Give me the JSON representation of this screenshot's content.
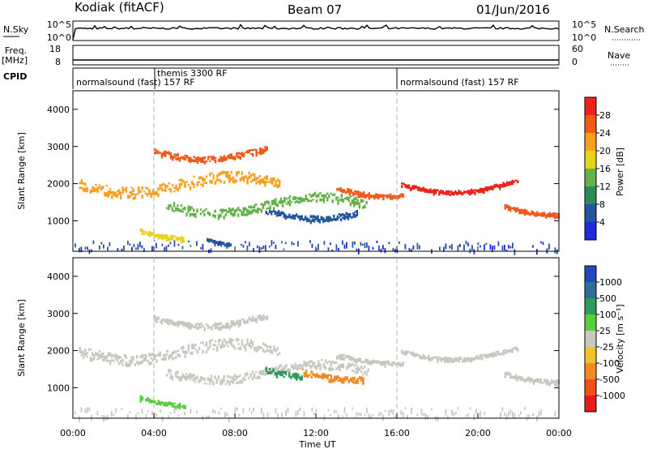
{
  "header": {
    "station": "Kodiak (fitACF)",
    "beam": "Beam 07",
    "date": "01/Jun/2016"
  },
  "panels": {
    "nsky_label": "N.Sky",
    "nsky_ticks": [
      "10^5",
      "10^0"
    ],
    "nsearch_label": "N.Search",
    "nsearch_ticks": [
      "10^5",
      "10^0"
    ],
    "freq_label": "Freq.",
    "freq_unit": "[MHz]",
    "freq_ticks": [
      "18",
      "8"
    ],
    "nave_label": "Nave",
    "nave_ticks": [
      "60",
      "0"
    ],
    "cpid_label": "CPID",
    "cpid_segments": [
      {
        "label": "normalsound (fast) 157 RF",
        "start_h": 0,
        "end_h": 16
      },
      {
        "label": "themis 3300 RF",
        "start_h": 4,
        "end_h": 16
      },
      {
        "label": "normalsound (fast) 157 RF",
        "start_h": 16,
        "end_h": 24
      }
    ]
  },
  "colorbars": {
    "power": {
      "label": "Power [dB]",
      "ticks": [
        "28",
        "24",
        "20",
        "16",
        "12",
        "8",
        "4"
      ],
      "colors": [
        "#e8241c",
        "#f25a1a",
        "#f5a020",
        "#e8d21c",
        "#66b24a",
        "#2f8a5a",
        "#23569e",
        "#1f2bd6"
      ]
    },
    "velocity": {
      "label": "Velocity [m s⁻¹]",
      "ticks": [
        "1000",
        "500",
        "100",
        "25",
        "-25",
        "-100",
        "-500",
        "-1000"
      ],
      "colors": [
        "#2448b8",
        "#2d6e9a",
        "#2f9a5e",
        "#58cf3a",
        "#c8c8c0",
        "#f2c22a",
        "#f08a22",
        "#f0501e",
        "#e41c18"
      ]
    }
  },
  "chart_data": [
    {
      "type": "heatmap",
      "title": "Power",
      "xlabel": "Time UT",
      "ylabel": "Slant Range [km]",
      "x_ticks": [
        "00:00",
        "04:00",
        "08:00",
        "12:00",
        "16:00",
        "20:00",
        "00:00"
      ],
      "y_ticks": [
        "4000",
        "3000",
        "2000",
        "1000"
      ],
      "xlim_hours": [
        0,
        24
      ],
      "ylim": [
        180,
        4500
      ],
      "dashed_lines_h": [
        4,
        16
      ],
      "regions": [
        {
          "t0": 0.3,
          "t1": 10.2,
          "r_center": 2000,
          "r_width": 280,
          "level": 2
        },
        {
          "t0": 4.6,
          "t1": 14.6,
          "r_center": 1450,
          "r_width": 230,
          "level": 4
        },
        {
          "t0": 9.5,
          "t1": 14.0,
          "r_center": 1300,
          "r_width": 150,
          "level": 6
        },
        {
          "t0": 3.3,
          "t1": 5.5,
          "r_center": 750,
          "r_width": 100,
          "level": 3
        },
        {
          "t0": 6.6,
          "t1": 7.8,
          "r_center": 520,
          "r_width": 60,
          "level": 6
        },
        {
          "t0": 4.0,
          "t1": 9.6,
          "r_center": 2900,
          "r_width": 140,
          "level": 1
        },
        {
          "t0": 13.0,
          "t1": 16.3,
          "r_center": 1900,
          "r_width": 110,
          "level": 1
        },
        {
          "t0": 16.2,
          "t1": 22.0,
          "r_center": 2000,
          "r_width": 100,
          "level": 0
        },
        {
          "t0": 21.3,
          "t1": 24.0,
          "r_center": 1400,
          "r_width": 100,
          "level": 1
        }
      ]
    },
    {
      "type": "heatmap",
      "title": "Velocity",
      "xlabel": "Time UT",
      "ylabel": "Slant Range [km]",
      "x_ticks": [
        "00:00",
        "04:00",
        "08:00",
        "12:00",
        "16:00",
        "20:00",
        "00:00"
      ],
      "y_ticks": [
        "4000",
        "3000",
        "2000",
        "1000"
      ],
      "xlim_hours": [
        0,
        24
      ],
      "ylim": [
        180,
        4500
      ],
      "dashed_lines_h": [
        4,
        16
      ],
      "regions": [
        {
          "t0": 0.3,
          "t1": 10.2,
          "r_center": 2000,
          "r_width": 280,
          "level": 4
        },
        {
          "t0": 4.6,
          "t1": 14.6,
          "r_center": 1450,
          "r_width": 230,
          "level": 4
        },
        {
          "t0": 9.5,
          "t1": 11.3,
          "r_center": 1500,
          "r_width": 160,
          "level": 2
        },
        {
          "t0": 11.3,
          "t1": 14.3,
          "r_center": 1450,
          "r_width": 160,
          "level": 6
        },
        {
          "t0": 4.0,
          "t1": 9.6,
          "r_center": 2900,
          "r_width": 140,
          "level": 4
        },
        {
          "t0": 3.3,
          "t1": 5.5,
          "r_center": 750,
          "r_width": 100,
          "level": 3
        },
        {
          "t0": 13.0,
          "t1": 16.3,
          "r_center": 1900,
          "r_width": 110,
          "level": 4
        },
        {
          "t0": 16.2,
          "t1": 22.0,
          "r_center": 2000,
          "r_width": 100,
          "level": 4
        },
        {
          "t0": 21.3,
          "t1": 24.0,
          "r_center": 1400,
          "r_width": 100,
          "level": 4
        }
      ]
    }
  ]
}
